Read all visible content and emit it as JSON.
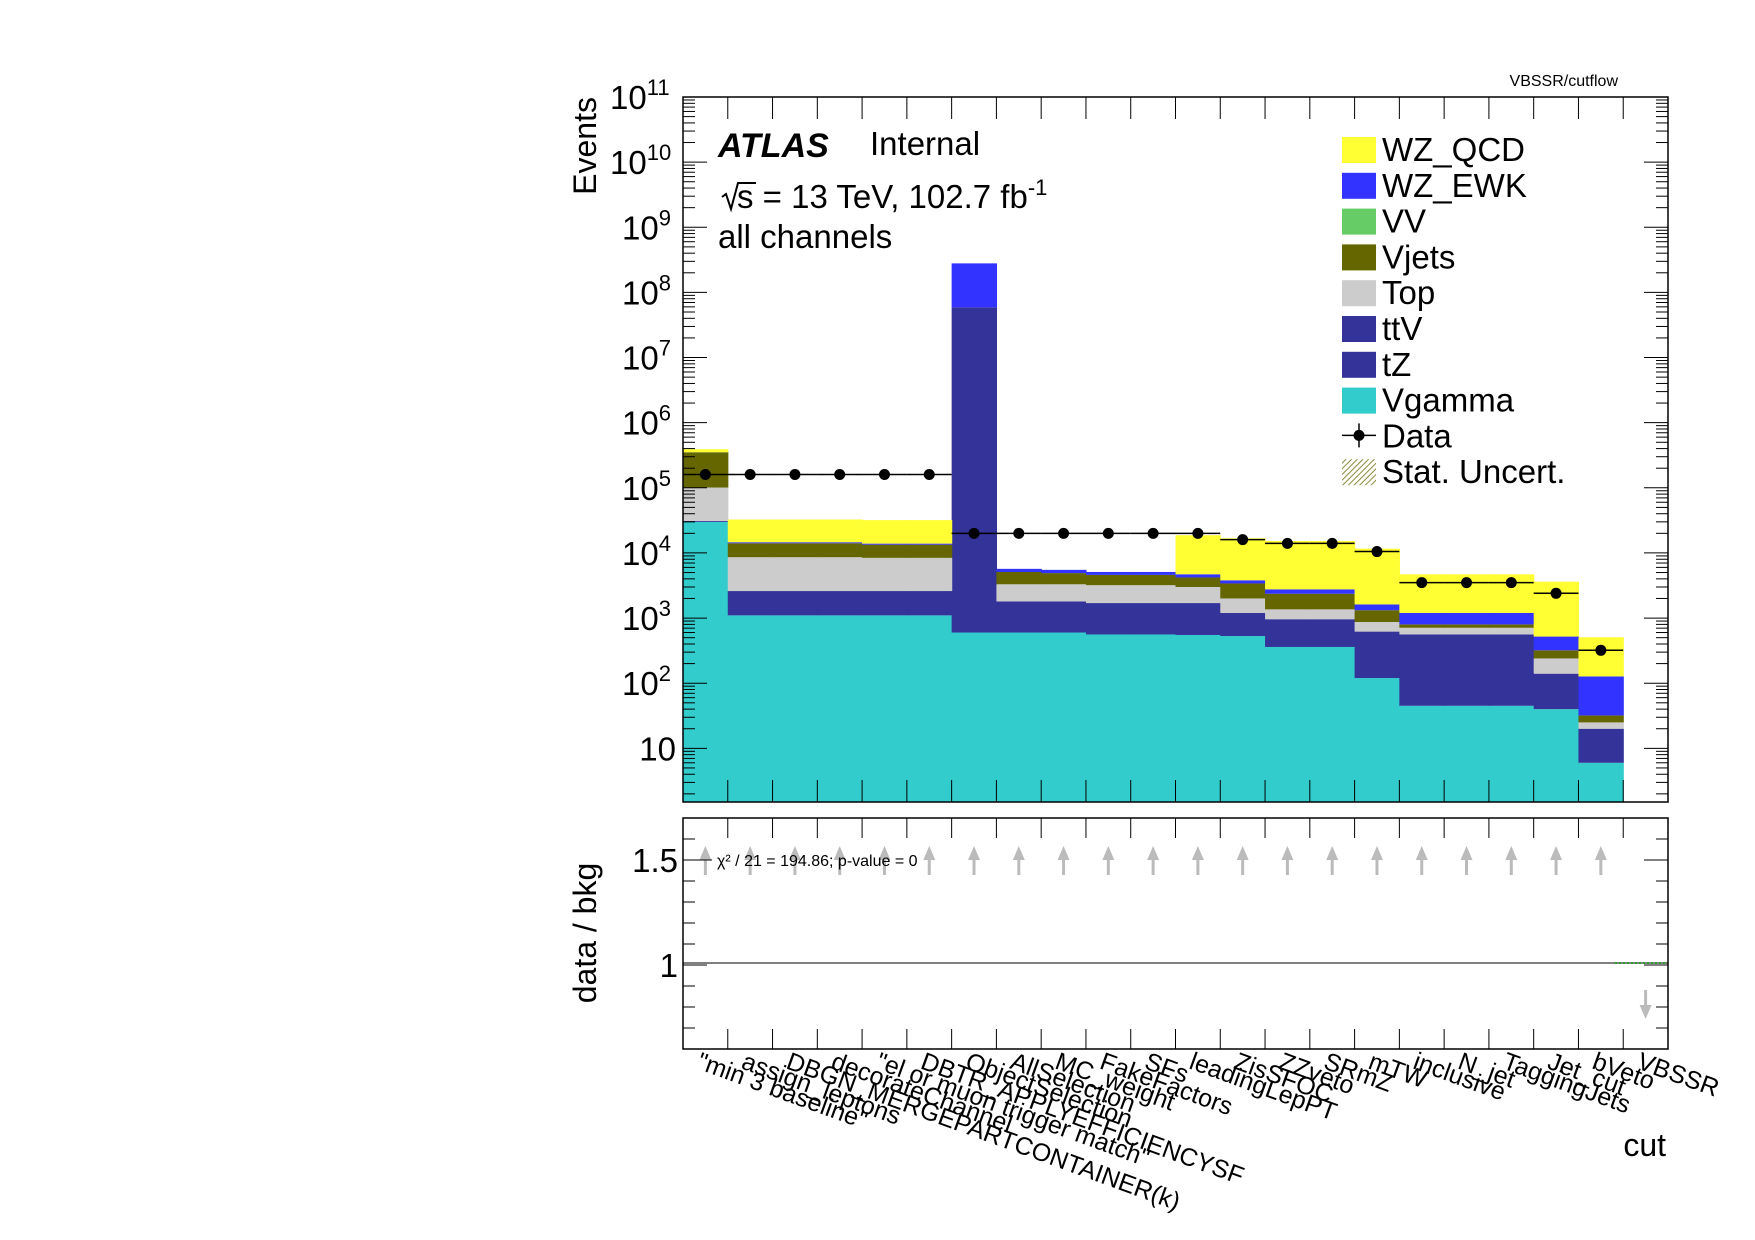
{
  "header": {
    "corner_label": "VBSSR/cutflow"
  },
  "labels": {
    "experiment": "ATLAS",
    "status": "Internal",
    "sqrt_s": "s",
    "energy_lumi": " = 13 TeV, 102.7 fb",
    "lumi_exp": "-1",
    "channel": "all channels",
    "chi2": "χ² / 21 = 194.86; p-value = 0"
  },
  "chart_data": {
    "type": "bar",
    "stacked": true,
    "scale": "log",
    "ylabel": "Events",
    "xlabel": "cut",
    "ratio_ylabel": "data / bkg",
    "ylim": [
      1.5,
      100000000000.0
    ],
    "ratio_ylim": [
      0.6,
      1.7
    ],
    "yticks": [
      {
        "base": "10",
        "exp": "",
        "value": 10
      },
      {
        "base": "10",
        "exp": "2",
        "value": 100
      },
      {
        "base": "10",
        "exp": "3",
        "value": 1000
      },
      {
        "base": "10",
        "exp": "4",
        "value": 10000
      },
      {
        "base": "10",
        "exp": "5",
        "value": 100000
      },
      {
        "base": "10",
        "exp": "6",
        "value": 1000000
      },
      {
        "base": "10",
        "exp": "7",
        "value": 10000000
      },
      {
        "base": "10",
        "exp": "8",
        "value": 100000000
      },
      {
        "base": "10",
        "exp": "9",
        "value": 1000000000
      },
      {
        "base": "10",
        "exp": "10",
        "value": 10000000000
      },
      {
        "base": "10",
        "exp": "11",
        "value": 100000000000
      }
    ],
    "ratio_yticks": [
      {
        "label": "1.5",
        "value": 1.5
      },
      {
        "label": "1",
        "value": 1.0
      }
    ],
    "categories": [
      "\"min 3 baseline\"",
      "assign_leptons",
      "DBGN_MERGEPARTCONTAINER(k)",
      "decorateChannel",
      "\"el or muon trigger match\"",
      "DBTR_APPLYEFFICIENCYSF",
      "ObjectSelection",
      "AllSelection",
      "MC_weight",
      "FakeFactors",
      "SFs",
      "leadingLepPT",
      "ZisSFOC",
      "ZZveto",
      "SRmZ",
      "mTW",
      "inclusive",
      "N_jet",
      "TaggingJets",
      "Jet_cut",
      "bVeto",
      "VBSSR"
    ],
    "series": [
      {
        "name": "Vgamma",
        "color": "#33cccc",
        "values": [
          30000,
          1100,
          1100,
          1100,
          1100,
          1100,
          600,
          600,
          600,
          560,
          560,
          550,
          530,
          360,
          360,
          120,
          45,
          45,
          45,
          40,
          6,
          1.5
        ]
      },
      {
        "name": "tZ",
        "color": "#333399",
        "values": [
          0,
          0,
          0,
          0,
          0,
          0,
          0,
          0,
          0,
          0,
          0,
          0,
          0,
          0,
          0,
          0,
          0,
          0,
          0,
          0,
          0,
          0
        ]
      },
      {
        "name": "ttV",
        "color": "#333399",
        "values": [
          1000,
          1500,
          1500,
          1500,
          1500,
          1500,
          59000000,
          1200,
          1200,
          1140,
          1140,
          1150,
          670,
          600,
          600,
          500,
          515,
          515,
          515,
          100,
          14,
          0
        ]
      },
      {
        "name": "Top",
        "color": "#cccccc",
        "values": [
          70000,
          6000,
          6000,
          6000,
          5800,
          5800,
          0,
          1500,
          1500,
          1500,
          1500,
          1300,
          800,
          400,
          400,
          250,
          150,
          150,
          150,
          100,
          5,
          0
        ]
      },
      {
        "name": "Vjets",
        "color": "#666600",
        "values": [
          250000,
          5500,
          5500,
          5500,
          5000,
          5000,
          0,
          1800,
          1600,
          1400,
          1400,
          1200,
          1400,
          1000,
          1000,
          450,
          90,
          90,
          90,
          80,
          7,
          0
        ]
      },
      {
        "name": "VV",
        "color": "#66cc66",
        "values": [
          0,
          0,
          0,
          0,
          0,
          0,
          0,
          0,
          0,
          0,
          0,
          0,
          0,
          0,
          0,
          0,
          0,
          0,
          0,
          0,
          0,
          0
        ]
      },
      {
        "name": "WZ_EWK",
        "color": "#3333ff",
        "values": [
          500,
          500,
          500,
          500,
          500,
          500,
          220000000,
          600,
          600,
          500,
          500,
          500,
          400,
          400,
          400,
          300,
          400,
          400,
          400,
          200,
          95,
          0
        ]
      },
      {
        "name": "WZ_QCD",
        "color": "#ffff33",
        "values": [
          40000,
          18000,
          18000,
          18000,
          18000,
          18000,
          0,
          0,
          0,
          0,
          0,
          14000,
          13000,
          12500,
          12500,
          10000,
          3500,
          3500,
          3500,
          3100,
          380,
          0
        ]
      }
    ],
    "data": {
      "name": "Data",
      "values": [
        160000,
        160000,
        160000,
        160000,
        160000,
        160000,
        20000,
        20000,
        20000,
        20000,
        20000,
        20000,
        16000,
        14000,
        14000,
        10500,
        3500,
        3500,
        3500,
        2400,
        320,
        null
      ]
    },
    "ratio": {
      "arrows_up": [
        true,
        true,
        true,
        true,
        true,
        true,
        true,
        true,
        true,
        true,
        true,
        true,
        true,
        true,
        true,
        true,
        true,
        true,
        true,
        true,
        true,
        false
      ],
      "arrows_down": [
        false,
        false,
        false,
        false,
        false,
        false,
        false,
        false,
        false,
        false,
        false,
        false,
        false,
        false,
        false,
        false,
        false,
        false,
        false,
        false,
        false,
        true
      ]
    },
    "legend": {
      "position": "top-right",
      "entries": [
        "WZ_QCD",
        "WZ_EWK",
        "VV",
        "Vjets",
        "Top",
        "ttV",
        "tZ",
        "Vgamma",
        "Data",
        "Stat. Uncert."
      ]
    },
    "legend_colors": {
      "WZ_QCD": "#ffff33",
      "WZ_EWK": "#3333ff",
      "VV": "#66cc66",
      "Vjets": "#666600",
      "Top": "#cccccc",
      "ttV": "#333399",
      "tZ": "#333399",
      "Vgamma": "#33cccc",
      "Stat. Uncert.": "#8a8a3c"
    }
  }
}
